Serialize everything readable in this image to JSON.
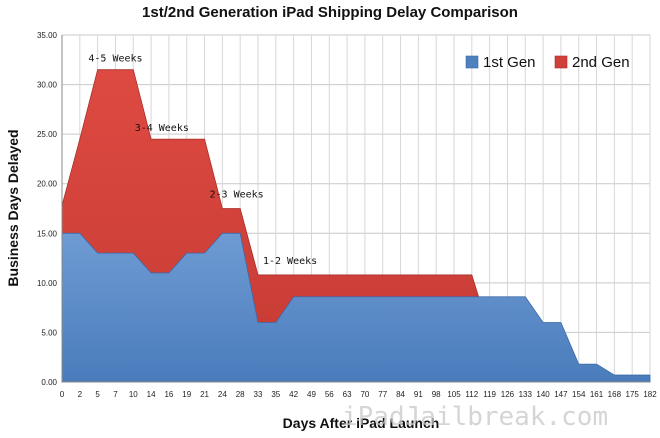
{
  "chart_data": {
    "type": "area",
    "title": "1st/2nd Generation iPad Shipping Delay Comparison",
    "xlabel": "Days After iPad Launch",
    "ylabel": "Business Days Delayed",
    "ylim": [
      0,
      35
    ],
    "yticks": [
      "0.00",
      "5.00",
      "10.00",
      "15.00",
      "20.00",
      "25.00",
      "30.00",
      "35.00"
    ],
    "categories": [
      "0",
      "2",
      "5",
      "7",
      "10",
      "14",
      "16",
      "19",
      "21",
      "24",
      "28",
      "33",
      "35",
      "42",
      "49",
      "56",
      "63",
      "70",
      "77",
      "84",
      "91",
      "98",
      "105",
      "112",
      "119",
      "126",
      "133",
      "140",
      "147",
      "154",
      "161",
      "168",
      "175",
      "182"
    ],
    "grid": true,
    "legend_position": "top-right",
    "series": [
      {
        "name": "1st Gen",
        "color": "#4f81bd",
        "values": [
          15,
          15,
          13,
          13,
          13,
          11,
          11,
          13,
          13,
          15,
          15,
          6,
          6,
          8.6,
          8.6,
          8.6,
          8.6,
          8.6,
          8.6,
          8.6,
          8.6,
          8.6,
          8.6,
          8.6,
          8.6,
          8.6,
          8.6,
          6,
          6,
          1.8,
          1.8,
          0.7,
          0.7,
          0.7
        ]
      },
      {
        "name": "2nd Gen",
        "color": "#d0403a",
        "values": [
          17.8,
          24.5,
          31.5,
          31.5,
          31.5,
          24.5,
          24.5,
          24.5,
          24.5,
          17.5,
          17.5,
          10.8,
          10.8,
          10.8,
          10.8,
          10.8,
          10.8,
          10.8,
          10.8,
          10.8,
          10.8,
          10.8,
          10.8,
          10.8,
          5,
          null,
          null,
          null,
          null,
          null,
          null,
          null,
          null,
          null
        ]
      }
    ],
    "annotations": [
      {
        "text": "4-5 Weeks",
        "x_index": 3,
        "y": 32
      },
      {
        "text": "3-4 Weeks",
        "x_index": 5.6,
        "y": 25
      },
      {
        "text": "2-3 Weeks",
        "x_index": 9.8,
        "y": 18.3
      },
      {
        "text": "1-2 Weeks",
        "x_index": 12.8,
        "y": 11.6
      }
    ],
    "watermark": "iPadJailbreak.com"
  }
}
